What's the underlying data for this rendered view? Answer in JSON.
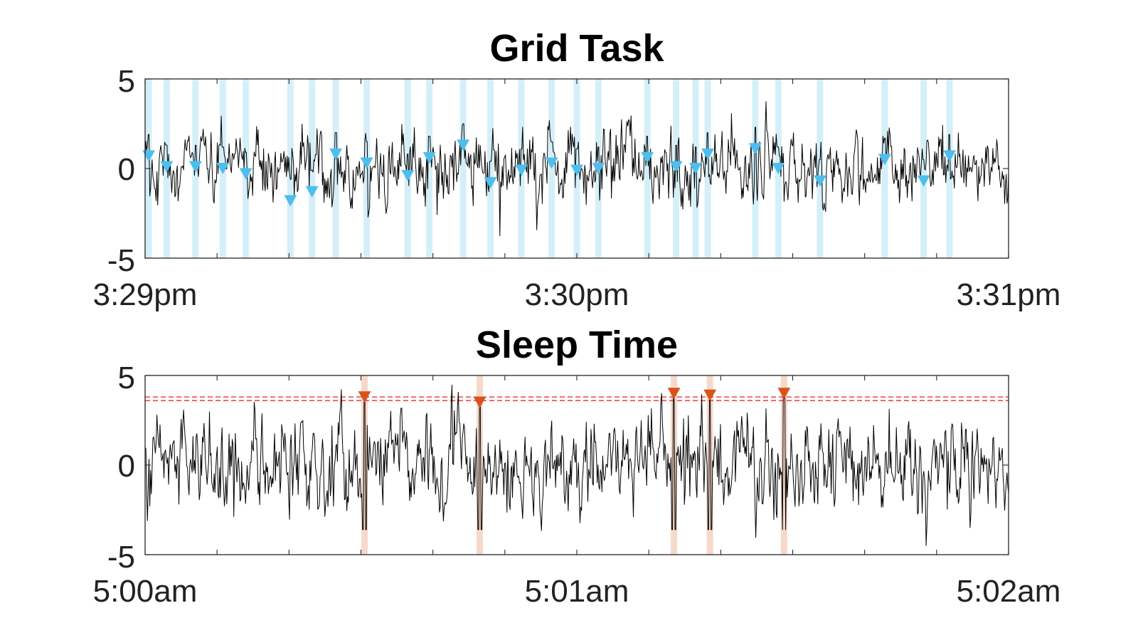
{
  "chart_data": [
    {
      "type": "line",
      "title": "Grid Task",
      "xlabel": "",
      "ylabel": "",
      "x_tick_labels": [
        "3:29pm",
        "3:30pm",
        "3:31pm"
      ],
      "y_tick_labels": [
        "5",
        "0",
        "-5"
      ],
      "xlim_seconds": [
        0,
        120
      ],
      "ylim": [
        -5,
        5
      ],
      "grid": false,
      "signal_color": "#000000",
      "marker_color": "#4DBEEE",
      "band_color": "#D5EFF9",
      "series": [
        {
          "marker": "triangle-down",
          "x_seconds": [
            0.5,
            3.0,
            7.0,
            10.8,
            14.0,
            20.2,
            23.2,
            26.5,
            30.8,
            36.5,
            39.5,
            44.2,
            48.0,
            52.3,
            56.5,
            60.0,
            63.0,
            69.8,
            73.8,
            76.5,
            78.2,
            84.8,
            88.0,
            93.8,
            102.8,
            108.2,
            111.8
          ],
          "y": [
            0.7,
            0.1,
            0.1,
            0.0,
            -0.3,
            -1.8,
            -1.3,
            0.8,
            0.3,
            -0.4,
            0.6,
            1.3,
            -0.8,
            -0.1,
            0.3,
            -0.1,
            0.0,
            0.6,
            0.1,
            0.0,
            0.8,
            1.1,
            0.0,
            -0.7,
            0.5,
            -0.7,
            0.7
          ]
        }
      ]
    },
    {
      "type": "line",
      "title": "Sleep Time",
      "xlabel": "",
      "ylabel": "",
      "x_tick_labels": [
        "5:00am",
        "5:01am",
        "5:02am"
      ],
      "y_tick_labels": [
        "5",
        "0",
        "-5"
      ],
      "xlim_seconds": [
        0,
        120
      ],
      "ylim": [
        -5,
        5
      ],
      "grid": false,
      "signal_color": "#000000",
      "marker_color": "#D95319",
      "band_color": "#F6D9CB",
      "threshold_color": "#E8454A",
      "thresholds": [
        3.6,
        3.8
      ],
      "series": [
        {
          "marker": "triangle-down",
          "x_seconds": [
            30.5,
            46.5,
            73.5,
            78.5,
            88.8
          ],
          "y": [
            3.8,
            3.5,
            4.0,
            3.9,
            4.0
          ]
        }
      ]
    }
  ]
}
